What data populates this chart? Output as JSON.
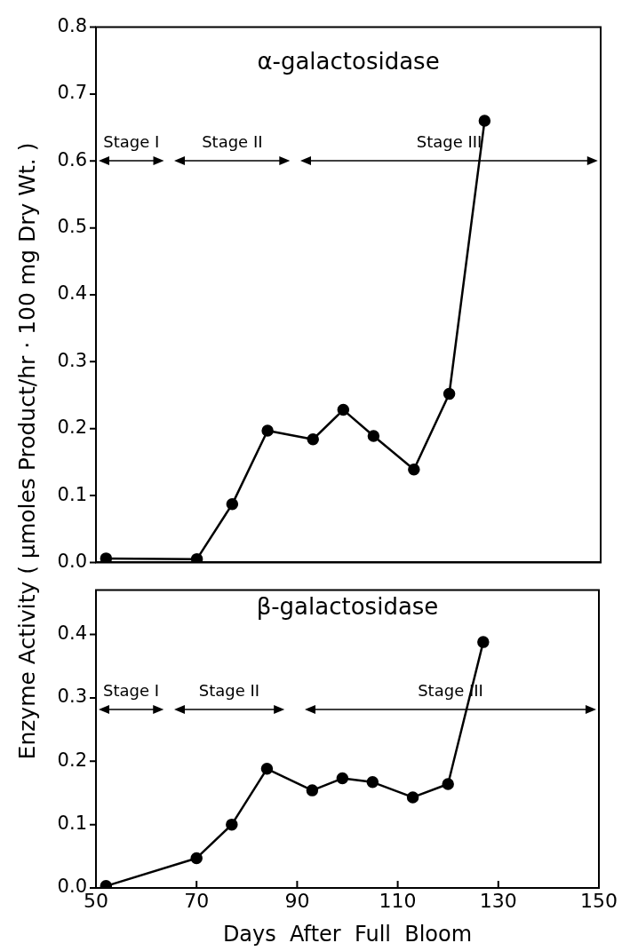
{
  "chart_data": [
    {
      "type": "line",
      "title": "α-galactosidase",
      "ylabel": "Enzyme Activity  ( µmoles  Product/hr · 100 mg  Dry Wt. )",
      "x": [
        52,
        70,
        77,
        84,
        93,
        99,
        105,
        113,
        120,
        127
      ],
      "series": [
        {
          "color": "#000000",
          "values": [
            0.006,
            0.005,
            0.087,
            0.197,
            0.184,
            0.228,
            0.189,
            0.139,
            0.252,
            0.66
          ]
        }
      ],
      "xlim": [
        50,
        150
      ],
      "ylim": [
        0,
        0.8
      ],
      "yticks": [
        {
          "value": 0,
          "label": "0.0"
        },
        0.1,
        0.2,
        0.3,
        0.4,
        0.5,
        0.6,
        0.7,
        0.8
      ],
      "tick_labels": "y",
      "legend": false,
      "marker": "circle",
      "line_style": "solid",
      "annotations": [
        "Stage I",
        "Stage II",
        "Stage III"
      ]
    },
    {
      "type": "line",
      "title": "β-galactosidase",
      "xlabel": "Days  After  Full  Bloom",
      "x": [
        52,
        70,
        77,
        84,
        93,
        99,
        105,
        113,
        120,
        127
      ],
      "series": [
        {
          "color": "#000000",
          "values": [
            0.003,
            0.047,
            0.1,
            0.188,
            0.154,
            0.173,
            0.167,
            0.143,
            0.164,
            0.388
          ]
        }
      ],
      "xlim": [
        50,
        150
      ],
      "xticks": [
        50,
        70,
        90,
        110,
        130,
        150
      ],
      "ylim": [
        0,
        0.47
      ],
      "yticks": [
        {
          "value": 0,
          "label": "0.0"
        },
        0.1,
        0.2,
        0.3,
        0.4
      ],
      "legend": false,
      "marker": "circle",
      "line_style": "solid",
      "annotations": [
        "Stage I",
        "Stage II",
        "Stage III"
      ]
    }
  ]
}
